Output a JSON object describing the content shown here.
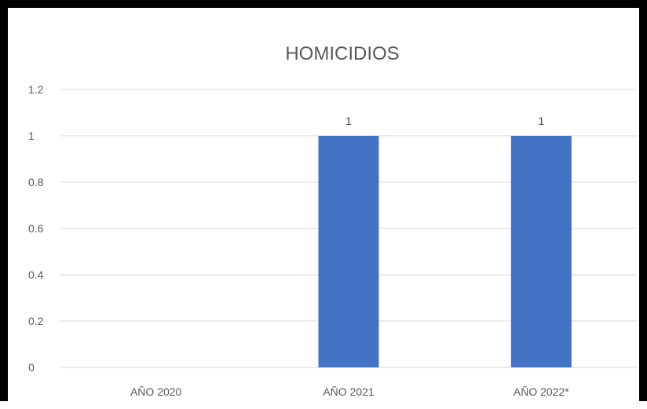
{
  "chart_data": {
    "type": "bar",
    "title": "HOMICIDIOS",
    "xlabel": "",
    "ylabel": "",
    "categories": [
      "AÑO 2020",
      "AÑO 2021",
      "AÑO 2022*"
    ],
    "series": [
      {
        "values": [
          0,
          1,
          1
        ],
        "data_labels": [
          "",
          "1",
          "1"
        ]
      }
    ],
    "ylim": [
      0,
      1.2
    ],
    "yticks": [
      0,
      0.2,
      0.4,
      0.6,
      0.8,
      1,
      1.2
    ],
    "ytick_labels": [
      "0",
      "0.2",
      "0.4",
      "0.6",
      "0.8",
      "1",
      "1.2"
    ],
    "grid": true,
    "legend": "none",
    "colors": {
      "bar": "#4472C4",
      "grid": "#D9D9D9",
      "frame": "#000000",
      "text": "#595959"
    }
  }
}
